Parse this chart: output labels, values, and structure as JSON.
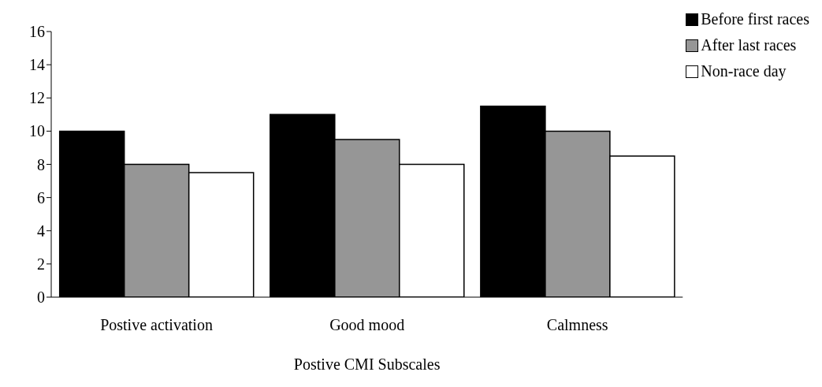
{
  "chart_data": {
    "type": "bar",
    "xlabel": "Postive CMI Subscales",
    "categories": [
      "Postive activation",
      "Good mood",
      "Calmness"
    ],
    "series": [
      {
        "name": "Before first races",
        "color": "#000000",
        "values": [
          10,
          11,
          11.5
        ]
      },
      {
        "name": "After last races",
        "color": "#969696",
        "values": [
          8,
          9.5,
          10
        ]
      },
      {
        "name": "Non-race day",
        "color": "#ffffff",
        "values": [
          7.5,
          8,
          8.5
        ]
      }
    ],
    "ylim": [
      0,
      16
    ],
    "yticks": [
      0,
      2,
      4,
      6,
      8,
      10,
      12,
      14,
      16
    ],
    "grid": false,
    "legend": "top right"
  }
}
